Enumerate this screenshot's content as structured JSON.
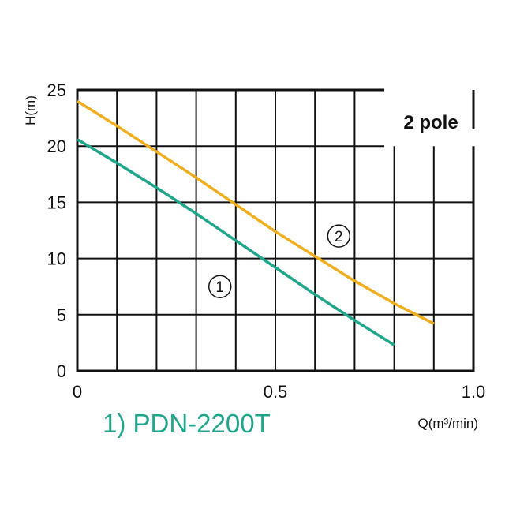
{
  "chart_data": {
    "type": "line",
    "xlabel": "Q(m³/min)",
    "ylabel": "H(m)",
    "xlim": [
      0,
      1.0
    ],
    "ylim": [
      0,
      25
    ],
    "x_ticks": [
      "0",
      "0.5",
      "1.0"
    ],
    "y_ticks": [
      "0",
      "5",
      "10",
      "15",
      "20",
      "25"
    ],
    "grid": true,
    "annotation": "2 pole",
    "series": [
      {
        "name": "①",
        "color": "#1fa68a",
        "x": [
          0,
          0.1,
          0.2,
          0.3,
          0.4,
          0.5,
          0.6,
          0.7,
          0.8
        ],
        "y": [
          20.6,
          18.5,
          16.3,
          14.0,
          11.6,
          9.2,
          6.8,
          4.5,
          2.3
        ]
      },
      {
        "name": "②",
        "color": "#f0ad1e",
        "x": [
          0,
          0.1,
          0.2,
          0.3,
          0.4,
          0.5,
          0.6,
          0.7,
          0.8,
          0.9
        ],
        "y": [
          24.0,
          21.8,
          19.5,
          17.2,
          14.8,
          12.4,
          10.2,
          8.0,
          6.0,
          4.2
        ]
      }
    ],
    "legend_text": "1) PDN-2200T",
    "legend_color": "#1fa68a"
  }
}
